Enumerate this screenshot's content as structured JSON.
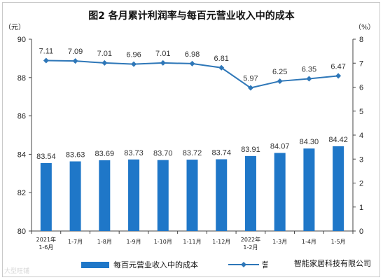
{
  "chart_data": {
    "type": "bar+line",
    "title": "图2 各月累计利润率与每百元营业收入中的成本",
    "categories": [
      "2021年 1-6月",
      "1-7月",
      "1-8月",
      "1-9月",
      "1-10月",
      "1-11月",
      "1-12月",
      "2022年 1-2月",
      "1-3月",
      "1-4月",
      "1-5月"
    ],
    "categories_lines": [
      [
        "2021年",
        "1-6月"
      ],
      [
        "1-7月"
      ],
      [
        "1-8月"
      ],
      [
        "1-9月"
      ],
      [
        "1-10月"
      ],
      [
        "1-11月"
      ],
      [
        "1-12月"
      ],
      [
        "2022年",
        "1-2月"
      ],
      [
        "1-3月"
      ],
      [
        "1-4月"
      ],
      [
        "1-5月"
      ]
    ],
    "series": [
      {
        "name": "每百元营业收入中的成本",
        "type": "bar",
        "axis": "left",
        "values": [
          83.54,
          83.63,
          83.69,
          83.73,
          83.7,
          83.72,
          83.74,
          83.91,
          84.07,
          84.3,
          84.42
        ],
        "labels": [
          "83.54",
          "83.63",
          "83.69",
          "83.73",
          "83.70",
          "83.72",
          "83.74",
          "83.91",
          "84.07",
          "84.30",
          "84.42"
        ],
        "color": "#1f77c8"
      },
      {
        "name": "营业收入利润率",
        "type": "line",
        "axis": "right",
        "values": [
          7.11,
          7.09,
          7.01,
          6.96,
          7.01,
          6.98,
          6.81,
          5.97,
          6.25,
          6.35,
          6.47
        ],
        "labels": [
          "7.11",
          "7.09",
          "7.01",
          "6.96",
          "7.01",
          "6.98",
          "6.81",
          "5.97",
          "6.25",
          "6.35",
          "6.47"
        ],
        "color": "#2e77b8"
      }
    ],
    "left_axis": {
      "unit": "（元）",
      "ylim": [
        80,
        90
      ],
      "ticks": [
        80,
        82,
        84,
        86,
        88,
        90
      ]
    },
    "right_axis": {
      "unit": "（%）",
      "ylim": [
        0,
        8
      ],
      "ticks": [
        0,
        1,
        2,
        3,
        4,
        5,
        6,
        7,
        8
      ]
    },
    "grid": false,
    "legend_position": "bottom"
  },
  "legend": {
    "bar_label": "每百元营业收入中的成本",
    "line_label_visible": "营业"
  },
  "watermarks": {
    "left": "大型旺铺",
    "right": "智能家居科技有限公司"
  }
}
